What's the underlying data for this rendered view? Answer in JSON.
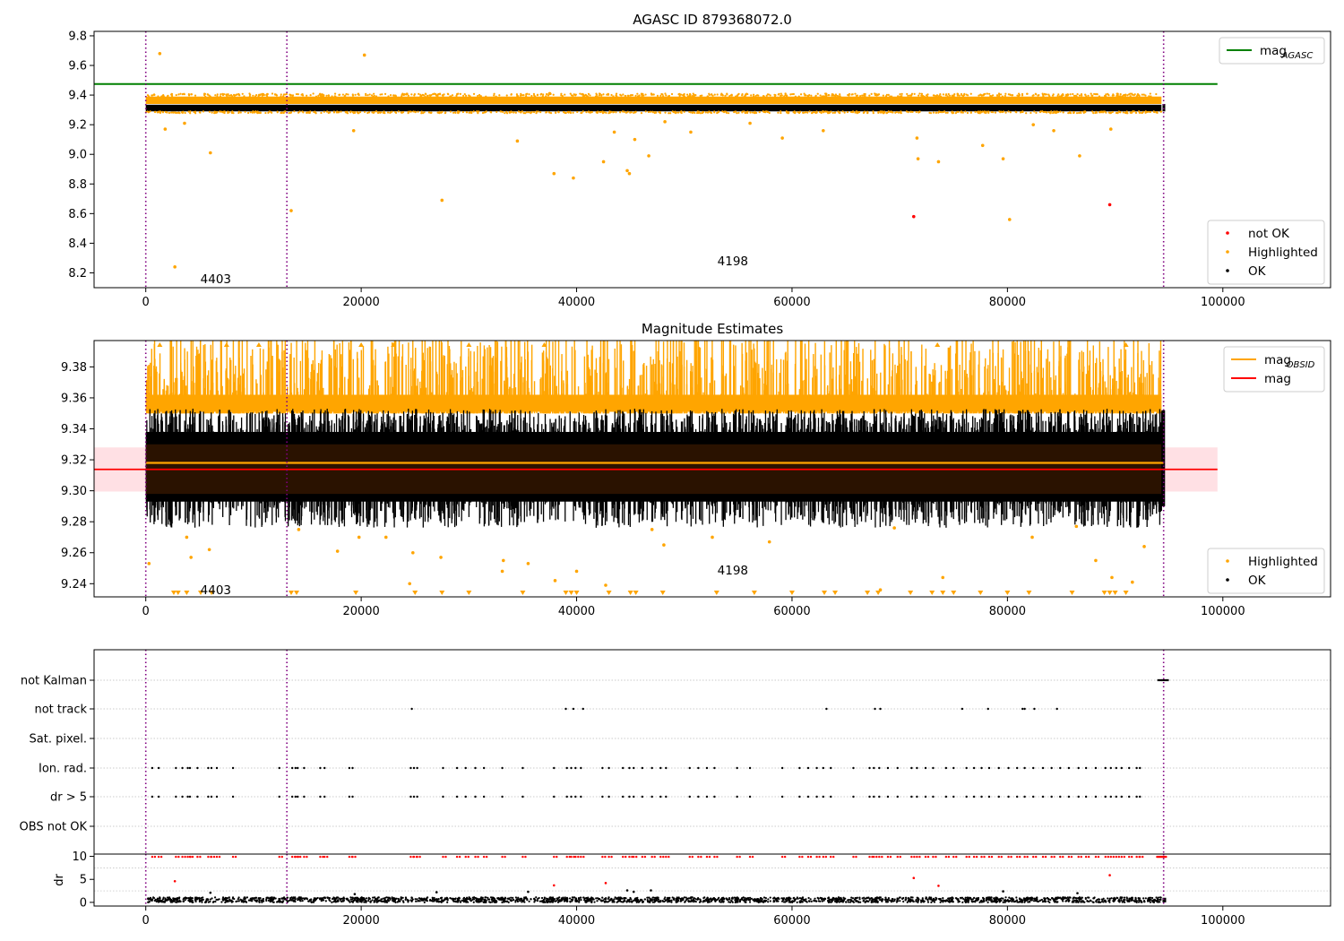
{
  "colors": {
    "ok": "#000000",
    "highlighted": "#ffa500",
    "not_ok": "#ff0000",
    "mag_agasc": "#008000",
    "mag": "#ff0000",
    "mag_obsid": "#ffa500",
    "obs_boundary": "#800080",
    "band": "#ffe0e4",
    "core": "#2a1200",
    "grid": "#bbbbbb"
  },
  "chart_data": [
    {
      "type": "scatter",
      "title": "AGASC ID 879368072.0",
      "xlim": [
        -4800,
        110000
      ],
      "ylim": [
        8.1,
        9.83
      ],
      "x_ticks": [
        0,
        20000,
        40000,
        60000,
        80000,
        100000
      ],
      "x_tick_labels": [
        "0",
        "20000",
        "40000",
        "60000",
        "80000",
        "100000"
      ],
      "y_ticks": [
        8.2,
        8.4,
        8.6,
        8.8,
        9.0,
        9.2,
        9.4,
        9.6,
        9.8
      ],
      "y_tick_labels": [
        "8.2",
        "8.4",
        "8.6",
        "8.8",
        "9.0",
        "9.2",
        "9.4",
        "9.6",
        "9.8"
      ],
      "obs_boundaries": [
        0,
        13100,
        94500
      ],
      "obs_labels": [
        {
          "x": 6500,
          "y": 8.16,
          "text": "4403"
        },
        {
          "x": 54500,
          "y": 8.28,
          "text": "4198"
        }
      ],
      "lines": [
        {
          "name": "mag_AGASC",
          "y": 9.475,
          "x_range": [
            -4800,
            99500
          ],
          "color": "#008000"
        }
      ],
      "ok_band": {
        "x_range": [
          0,
          94300
        ],
        "y_range": [
          9.29,
          9.335
        ]
      },
      "highlight_band": {
        "x_range": [
          0,
          94300
        ],
        "y_range": [
          9.34,
          9.39
        ]
      },
      "highlighted_points": [
        [
          1300,
          9.68
        ],
        [
          20300,
          9.67
        ],
        [
          37500,
          9.41
        ],
        [
          1800,
          9.17
        ],
        [
          3600,
          9.21
        ],
        [
          6000,
          9.01
        ],
        [
          2700,
          8.24
        ],
        [
          13500,
          8.62
        ],
        [
          19300,
          9.16
        ],
        [
          27500,
          8.69
        ],
        [
          34500,
          9.09
        ],
        [
          37900,
          8.87
        ],
        [
          39700,
          8.84
        ],
        [
          42500,
          8.95
        ],
        [
          43500,
          9.15
        ],
        [
          44700,
          8.89
        ],
        [
          44900,
          8.87
        ],
        [
          45400,
          9.1
        ],
        [
          46700,
          8.99
        ],
        [
          48200,
          9.22
        ],
        [
          50600,
          9.15
        ],
        [
          56100,
          9.21
        ],
        [
          59100,
          9.11
        ],
        [
          62900,
          9.16
        ],
        [
          71600,
          9.11
        ],
        [
          71700,
          8.97
        ],
        [
          73600,
          8.95
        ],
        [
          77700,
          9.06
        ],
        [
          79600,
          8.97
        ],
        [
          80200,
          8.56
        ],
        [
          82400,
          9.2
        ],
        [
          84300,
          9.16
        ],
        [
          86700,
          8.99
        ],
        [
          89600,
          9.17
        ]
      ],
      "not_ok_points": [
        [
          71300,
          8.58
        ],
        [
          89500,
          8.66
        ]
      ],
      "legends": [
        {
          "label": "mag",
          "sub": "AGASC",
          "marker": "line",
          "color": "#008000"
        },
        {
          "label": "not OK",
          "marker": "dot",
          "color": "#ff0000"
        },
        {
          "label": "Highlighted",
          "marker": "dot",
          "color": "#ffa500"
        },
        {
          "label": "OK",
          "marker": "dot",
          "color": "#000000"
        }
      ],
      "legend_placement": [
        "top-right",
        "bottom-right"
      ]
    },
    {
      "type": "scatter",
      "title": "Magnitude Estimates",
      "xlim": [
        -4800,
        110000
      ],
      "ylim": [
        9.2315,
        9.397
      ],
      "x_ticks": [
        0,
        20000,
        40000,
        60000,
        80000,
        100000
      ],
      "x_tick_labels": [
        "0",
        "20000",
        "40000",
        "60000",
        "80000",
        "100000"
      ],
      "y_ticks": [
        9.24,
        9.26,
        9.28,
        9.3,
        9.32,
        9.34,
        9.36,
        9.38
      ],
      "y_tick_labels": [
        "9.24",
        "9.26",
        "9.28",
        "9.30",
        "9.32",
        "9.34",
        "9.36",
        "9.38"
      ],
      "obs_boundaries": [
        0,
        13100,
        94500
      ],
      "obs_labels": [
        {
          "x": 6500,
          "y": 9.236,
          "text": "4403"
        },
        {
          "x": 54500,
          "y": 9.249,
          "text": "4198"
        }
      ],
      "lines": [
        {
          "name": "mag_OBSID",
          "y": 9.318,
          "x_range": [
            0,
            94500
          ],
          "color": "#ffa500"
        },
        {
          "name": "mag",
          "y": 9.3138,
          "x_range": [
            -4800,
            99500
          ],
          "color": "#ff0000"
        }
      ],
      "mag_error_band": {
        "x_range": [
          -4800,
          99500
        ],
        "y_range": [
          9.2995,
          9.328
        ]
      },
      "core_band": {
        "x_range": [
          0,
          94300
        ],
        "y_range": [
          9.298,
          9.33
        ]
      },
      "ok_band": {
        "x_range": [
          0,
          94300
        ],
        "y_range": [
          9.28,
          9.352
        ]
      },
      "highlight_band": {
        "x_range": [
          0,
          94300
        ],
        "y_range": [
          9.356,
          9.392
        ]
      },
      "highlighted_points": [
        [
          300,
          9.253
        ],
        [
          3800,
          9.27
        ],
        [
          4200,
          9.257
        ],
        [
          5900,
          9.262
        ],
        [
          14200,
          9.275
        ],
        [
          17800,
          9.261
        ],
        [
          19800,
          9.27
        ],
        [
          22300,
          9.27
        ],
        [
          24500,
          9.24
        ],
        [
          24800,
          9.26
        ],
        [
          27400,
          9.257
        ],
        [
          33100,
          9.248
        ],
        [
          33200,
          9.255
        ],
        [
          35500,
          9.253
        ],
        [
          38000,
          9.242
        ],
        [
          40000,
          9.248
        ],
        [
          42700,
          9.239
        ],
        [
          47000,
          9.275
        ],
        [
          48100,
          9.265
        ],
        [
          52600,
          9.27
        ],
        [
          57900,
          9.267
        ],
        [
          69500,
          9.276
        ],
        [
          74000,
          9.244
        ],
        [
          82300,
          9.27
        ],
        [
          86400,
          9.277
        ],
        [
          88200,
          9.255
        ],
        [
          89700,
          9.244
        ],
        [
          91600,
          9.241
        ],
        [
          92700,
          9.264
        ],
        [
          68200,
          9.236
        ]
      ],
      "clipped_low_x": [
        2600,
        3000,
        3800,
        5100,
        6100,
        13500,
        14000,
        19500,
        25000,
        27500,
        30000,
        35000,
        39000,
        39500,
        40000,
        43000,
        45000,
        45500,
        48000,
        53000,
        56500,
        60000,
        63000,
        64000,
        67000,
        68000,
        71000,
        73000,
        74000,
        75000,
        77500,
        80000,
        82000,
        86000,
        89000,
        89500,
        90000,
        91000
      ],
      "clipped_high_x": [
        1300,
        7500,
        10500,
        20000,
        23000,
        30000,
        37000,
        73500,
        91000
      ],
      "legends": [
        {
          "label": "mag",
          "sub": "OBSID",
          "marker": "line",
          "color": "#ffa500"
        },
        {
          "label": "mag",
          "marker": "line",
          "color": "#ff0000"
        },
        {
          "label": "Highlighted",
          "marker": "dot",
          "color": "#ffa500"
        },
        {
          "label": "OK",
          "marker": "dot",
          "color": "#000000"
        }
      ],
      "legend_placement": [
        "top-right",
        "bottom-right"
      ]
    },
    {
      "type": "scatter",
      "xlim": [
        -4800,
        110000
      ],
      "categories": [
        "not Kalman",
        "not track",
        "Sat. pixel.",
        "Ion. rad.",
        "dr > 5",
        "OBS not OK"
      ],
      "obs_boundaries": [
        0,
        13100,
        94500
      ],
      "not_kalman_x": [
        94000,
        94150,
        94300,
        94450,
        94600,
        94750,
        94900
      ],
      "not_track_x": [
        24700,
        39000,
        39700,
        40600,
        63200,
        67700,
        68200,
        75800,
        78200,
        81400,
        81600,
        82500,
        84600
      ],
      "ion_rad_x": [
        600,
        1200,
        2800,
        3400,
        3900,
        4100,
        4800,
        5800,
        6100,
        6600,
        8100,
        12400,
        13600,
        13900,
        14100,
        14700,
        16200,
        16600,
        18900,
        19200,
        24600,
        24900,
        25200,
        27600,
        28900,
        29700,
        30600,
        31400,
        33100,
        35000,
        37900,
        39100,
        39500,
        39900,
        40400,
        42400,
        43000,
        44300,
        44900,
        45300,
        46100,
        47000,
        47800,
        48300,
        50500,
        51300,
        52100,
        52800,
        54900,
        56100,
        59100,
        60700,
        61500,
        62300,
        62900,
        63600,
        65700,
        67200,
        67600,
        68100,
        68900,
        69800,
        71100,
        71600,
        72400,
        73100,
        74300,
        75000,
        76200,
        76900,
        77600,
        78300,
        79200,
        80100,
        80900,
        81600,
        82400,
        83300,
        84100,
        84900,
        85700,
        86600,
        87300,
        88200,
        89100,
        89600,
        90100,
        90600,
        91300,
        92000,
        92300
      ],
      "dr_y": {
        "ylim": [
          -0.8,
          10.5
        ],
        "ticks": [
          0,
          5,
          10
        ],
        "tick_labels": [
          "0",
          "5",
          "10"
        ],
        "ylabel": "dr"
      },
      "dr_outliers": [
        [
          2700,
          4.6
        ],
        [
          35500,
          2.3
        ],
        [
          37900,
          3.7
        ],
        [
          42700,
          4.2
        ],
        [
          44700,
          2.6
        ],
        [
          45300,
          2.3
        ],
        [
          46900,
          2.6
        ],
        [
          71300,
          5.3
        ],
        [
          73600,
          3.6
        ],
        [
          79600,
          2.4
        ],
        [
          89500,
          5.9
        ],
        [
          6000,
          2.1
        ],
        [
          19400,
          1.8
        ],
        [
          27000,
          2.2
        ],
        [
          86500,
          2.0
        ]
      ]
    }
  ]
}
